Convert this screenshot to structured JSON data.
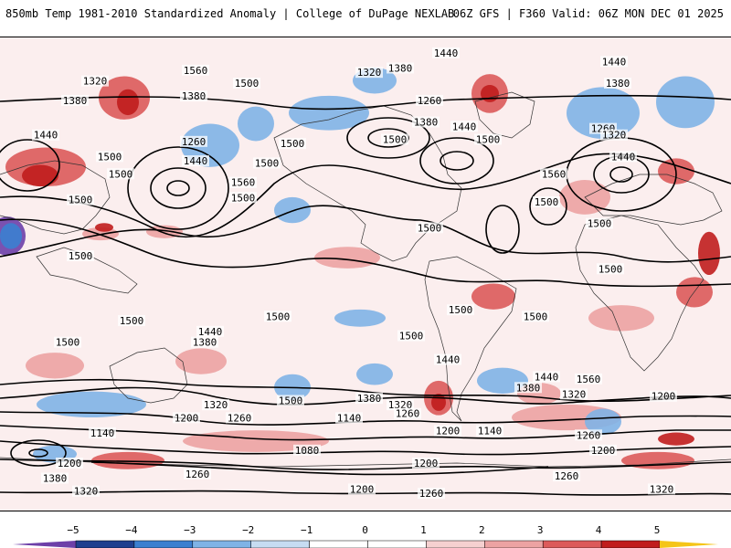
{
  "header": {
    "title": "850mb Temp 1981-2010 Standardized Anomaly | College of DuPage NEXLAB",
    "run_info": "06Z GFS | F360 Valid: 06Z MON DEC 01 2025"
  },
  "contour_labels": [
    {
      "text": "1440",
      "lon": 44,
      "lat": 82
    },
    {
      "text": "1440",
      "lon": 136,
      "lat": 78
    },
    {
      "text": "1560",
      "lon": -93,
      "lat": 74
    },
    {
      "text": "1320",
      "lon": 2,
      "lat": 73
    },
    {
      "text": "1380",
      "lon": 19,
      "lat": 75
    },
    {
      "text": "1320",
      "lon": -148,
      "lat": 69
    },
    {
      "text": "1500",
      "lon": -65,
      "lat": 68
    },
    {
      "text": "1380",
      "lon": 138,
      "lat": 68
    },
    {
      "text": "1380",
      "lon": -159,
      "lat": 60
    },
    {
      "text": "1380",
      "lon": -94,
      "lat": 62
    },
    {
      "text": "1260",
      "lon": 35,
      "lat": 60
    },
    {
      "text": "1380",
      "lon": 33,
      "lat": 50
    },
    {
      "text": "1440",
      "lon": 54,
      "lat": 48
    },
    {
      "text": "1260",
      "lon": 130,
      "lat": 47
    },
    {
      "text": "1320",
      "lon": 136,
      "lat": 44
    },
    {
      "text": "1440",
      "lon": -175,
      "lat": 44
    },
    {
      "text": "1500",
      "lon": -40,
      "lat": 40
    },
    {
      "text": "1500",
      "lon": 16,
      "lat": 42
    },
    {
      "text": "1500",
      "lon": 67,
      "lat": 42
    },
    {
      "text": "1260",
      "lon": -94,
      "lat": 41
    },
    {
      "text": "1500",
      "lon": -140,
      "lat": 34
    },
    {
      "text": "1440",
      "lon": -93,
      "lat": 32
    },
    {
      "text": "1440",
      "lon": 141,
      "lat": 34
    },
    {
      "text": "1500",
      "lon": -54,
      "lat": 31
    },
    {
      "text": "1500",
      "lon": -134,
      "lat": 26
    },
    {
      "text": "1560",
      "lon": 103,
      "lat": 26
    },
    {
      "text": "1560",
      "lon": -67,
      "lat": 22
    },
    {
      "text": "1500",
      "lon": -67,
      "lat": 15
    },
    {
      "text": "1500",
      "lon": 99,
      "lat": 13
    },
    {
      "text": "1500",
      "lon": -156,
      "lat": 14
    },
    {
      "text": "1500",
      "lon": 128,
      "lat": 3
    },
    {
      "text": "1500",
      "lon": 35,
      "lat": 1
    },
    {
      "text": "1500",
      "lon": -156,
      "lat": -12
    },
    {
      "text": "1500",
      "lon": 134,
      "lat": -18
    },
    {
      "text": "1500",
      "lon": 52,
      "lat": -37
    },
    {
      "text": "1500",
      "lon": -48,
      "lat": -40
    },
    {
      "text": "1500",
      "lon": 93,
      "lat": -40
    },
    {
      "text": "1500",
      "lon": 25,
      "lat": -49
    },
    {
      "text": "1500",
      "lon": -128,
      "lat": -42
    },
    {
      "text": "1440",
      "lon": -85,
      "lat": -47
    },
    {
      "text": "1380",
      "lon": -88,
      "lat": -52
    },
    {
      "text": "1440",
      "lon": 45,
      "lat": -60
    },
    {
      "text": "1500",
      "lon": -163,
      "lat": -52
    },
    {
      "text": "1440",
      "lon": 99,
      "lat": -68
    },
    {
      "text": "1560",
      "lon": 122,
      "lat": -69
    },
    {
      "text": "1380",
      "lon": 89,
      "lat": -73
    },
    {
      "text": "1320",
      "lon": 114,
      "lat": -76
    },
    {
      "text": "1200",
      "lon": 163,
      "lat": -77
    },
    {
      "text": "1500",
      "lon": -41,
      "lat": -79
    },
    {
      "text": "1380",
      "lon": 2,
      "lat": -78
    },
    {
      "text": "1320",
      "lon": -82,
      "lat": -81
    },
    {
      "text": "1320",
      "lon": 19,
      "lat": -81
    },
    {
      "text": "1260",
      "lon": 23,
      "lat": -85
    },
    {
      "text": "1260",
      "lon": -69,
      "lat": -87
    },
    {
      "text": "1200",
      "lon": -98,
      "lat": -87
    },
    {
      "text": "1140",
      "lon": -9,
      "lat": -87
    },
    {
      "text": "1200",
      "lon": 45,
      "lat": -93
    },
    {
      "text": "1140",
      "lon": 68,
      "lat": -93
    },
    {
      "text": "1260",
      "lon": 122,
      "lat": -95
    },
    {
      "text": "1140",
      "lon": -144,
      "lat": -94
    },
    {
      "text": "1080",
      "lon": -32,
      "lat": -102
    },
    {
      "text": "1200",
      "lon": 130,
      "lat": -102
    },
    {
      "text": "1200",
      "lon": -162,
      "lat": -108
    },
    {
      "text": "1200",
      "lon": 33,
      "lat": -108
    },
    {
      "text": "1260",
      "lon": -92,
      "lat": -113
    },
    {
      "text": "1260",
      "lon": 110,
      "lat": -114
    },
    {
      "text": "1380",
      "lon": -170,
      "lat": -115
    },
    {
      "text": "1320",
      "lon": -153,
      "lat": -121
    },
    {
      "text": "1200",
      "lon": -2,
      "lat": -120
    },
    {
      "text": "1260",
      "lon": 36,
      "lat": -122
    },
    {
      "text": "1320",
      "lon": 162,
      "lat": -120
    }
  ],
  "anomaly_blobs": [
    {
      "lon": -175,
      "lat": 30,
      "rx": 22,
      "ry": 9,
      "value": 3
    },
    {
      "lon": -178,
      "lat": 26,
      "rx": 10,
      "ry": 5,
      "value": 4
    },
    {
      "lon": -132,
      "lat": 62,
      "rx": 14,
      "ry": 10,
      "value": 3
    },
    {
      "lon": -130,
      "lat": 60,
      "rx": 6,
      "ry": 6,
      "value": 4
    },
    {
      "lon": -196,
      "lat": -2,
      "rx": 10,
      "ry": 9,
      "value": -5
    },
    {
      "lon": -194,
      "lat": -2,
      "rx": 6,
      "ry": 6,
      "value": -3
    },
    {
      "lon": -85,
      "lat": 40,
      "rx": 16,
      "ry": 10,
      "value": -2
    },
    {
      "lon": -20,
      "lat": 55,
      "rx": 22,
      "ry": 8,
      "value": -2
    },
    {
      "lon": 5,
      "lat": 70,
      "rx": 12,
      "ry": 6,
      "value": -2
    },
    {
      "lon": 68,
      "lat": 64,
      "rx": 10,
      "ry": 9,
      "value": 3
    },
    {
      "lon": 68,
      "lat": 64,
      "rx": 5,
      "ry": 4,
      "value": 4
    },
    {
      "lon": 130,
      "lat": 55,
      "rx": 20,
      "ry": 12,
      "value": -2
    },
    {
      "lon": 175,
      "lat": 60,
      "rx": 16,
      "ry": 12,
      "value": -2
    },
    {
      "lon": 170,
      "lat": 28,
      "rx": 10,
      "ry": 6,
      "value": 3
    },
    {
      "lon": 120,
      "lat": 16,
      "rx": 14,
      "ry": 8,
      "value": 2
    },
    {
      "lon": 188,
      "lat": -10,
      "rx": 6,
      "ry": 10,
      "value": 4
    },
    {
      "lon": 70,
      "lat": -30,
      "rx": 12,
      "ry": 6,
      "value": 3
    },
    {
      "lon": 180,
      "lat": -28,
      "rx": 10,
      "ry": 7,
      "value": 3
    },
    {
      "lon": -145,
      "lat": -1,
      "rx": 10,
      "ry": 3,
      "value": 2
    },
    {
      "lon": -143,
      "lat": 2,
      "rx": 5,
      "ry": 2,
      "value": 4
    },
    {
      "lon": -110,
      "lat": 0,
      "rx": 10,
      "ry": 3,
      "value": 2
    },
    {
      "lon": -10,
      "lat": -12,
      "rx": 18,
      "ry": 5,
      "value": 2
    },
    {
      "lon": -3,
      "lat": -40,
      "rx": 14,
      "ry": 4,
      "value": -2
    },
    {
      "lon": 5,
      "lat": -66,
      "rx": 10,
      "ry": 5,
      "value": -2
    },
    {
      "lon": -40,
      "lat": -72,
      "rx": 10,
      "ry": 6,
      "value": -2
    },
    {
      "lon": 75,
      "lat": -69,
      "rx": 14,
      "ry": 6,
      "value": -2
    },
    {
      "lon": 40,
      "lat": -77,
      "rx": 8,
      "ry": 8,
      "value": 3
    },
    {
      "lon": 40,
      "lat": -79,
      "rx": 4,
      "ry": 4,
      "value": 4
    },
    {
      "lon": 95,
      "lat": -75,
      "rx": 12,
      "ry": 5,
      "value": 2
    },
    {
      "lon": 110,
      "lat": -86,
      "rx": 30,
      "ry": 6,
      "value": 2
    },
    {
      "lon": 130,
      "lat": -88,
      "rx": 10,
      "ry": 6,
      "value": -2
    },
    {
      "lon": -150,
      "lat": -80,
      "rx": 30,
      "ry": 6,
      "value": -2
    },
    {
      "lon": -60,
      "lat": -97,
      "rx": 40,
      "ry": 5,
      "value": 2
    },
    {
      "lon": -130,
      "lat": -106,
      "rx": 20,
      "ry": 4,
      "value": 3
    },
    {
      "lon": 160,
      "lat": -106,
      "rx": 20,
      "ry": 4,
      "value": 3
    },
    {
      "lon": 170,
      "lat": -96,
      "rx": 10,
      "ry": 3,
      "value": 4
    },
    {
      "lon": -170,
      "lat": -103,
      "rx": 12,
      "ry": 4,
      "value": -2
    },
    {
      "lon": -170,
      "lat": -62,
      "rx": 16,
      "ry": 6,
      "value": 2
    },
    {
      "lon": -90,
      "lat": -60,
      "rx": 14,
      "ry": 6,
      "value": 2
    },
    {
      "lon": 140,
      "lat": -40,
      "rx": 18,
      "ry": 6,
      "value": 2
    },
    {
      "lon": -40,
      "lat": 10,
      "rx": 10,
      "ry": 6,
      "value": -2
    },
    {
      "lon": -60,
      "lat": 50,
      "rx": 10,
      "ry": 8,
      "value": -2
    }
  ],
  "colorbar": {
    "ticks": [
      "−5",
      "−4",
      "−3",
      "−2",
      "−1",
      "0",
      "1",
      "2",
      "3",
      "4",
      "5"
    ],
    "colors": {
      "-5": "#6d3fa8",
      "-4": "#1f3f8f",
      "-3": "#3b7fd0",
      "-2": "#7fb3e6",
      "-1": "#c6dcf2",
      "0": "#ffffff",
      "1": "#f6d0d0",
      "2": "#eca2a2",
      "3": "#dc5a5a",
      "4": "#c01d1d",
      "5": "#7a0a0a",
      "tip": "#f5c518"
    }
  }
}
